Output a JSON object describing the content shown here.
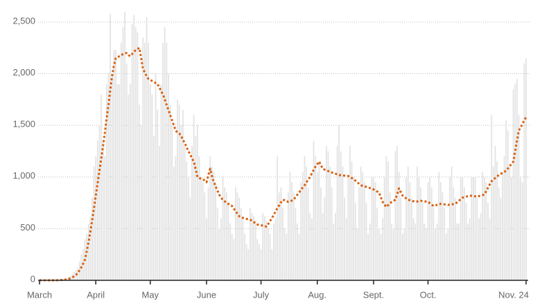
{
  "chart_data": {
    "type": "bar",
    "categories": [
      "March",
      null,
      null,
      null,
      null,
      null,
      null,
      null,
      null,
      null,
      null,
      null,
      null,
      null,
      null,
      null,
      null,
      null,
      null,
      null,
      null,
      null,
      null,
      null,
      null,
      null,
      null,
      null,
      null,
      null,
      null,
      "April",
      null,
      null,
      null,
      null,
      null,
      null,
      null,
      null,
      null,
      null,
      null,
      null,
      null,
      null,
      null,
      null,
      null,
      null,
      null,
      null,
      null,
      null,
      null,
      null,
      null,
      null,
      null,
      null,
      null,
      "May",
      null,
      null,
      null,
      null,
      null,
      null,
      null,
      null,
      null,
      null,
      null,
      null,
      null,
      null,
      null,
      null,
      null,
      null,
      null,
      null,
      null,
      null,
      null,
      null,
      null,
      null,
      null,
      null,
      null,
      null,
      "June",
      null,
      null,
      null,
      null,
      null,
      null,
      null,
      null,
      null,
      null,
      null,
      null,
      null,
      null,
      null,
      null,
      null,
      null,
      null,
      null,
      null,
      null,
      null,
      null,
      null,
      null,
      null,
      null,
      null,
      "July",
      null,
      null,
      null,
      null,
      null,
      null,
      null,
      null,
      null,
      null,
      null,
      null,
      null,
      null,
      null,
      null,
      null,
      null,
      null,
      null,
      null,
      null,
      null,
      null,
      null,
      null,
      null,
      null,
      null,
      null,
      "Aug.",
      null,
      null,
      null,
      null,
      null,
      null,
      null,
      null,
      null,
      null,
      null,
      null,
      null,
      null,
      null,
      null,
      null,
      null,
      null,
      null,
      null,
      null,
      null,
      null,
      null,
      null,
      null,
      null,
      null,
      null,
      "Sept.",
      null,
      null,
      null,
      null,
      null,
      null,
      null,
      null,
      null,
      null,
      null,
      null,
      null,
      null,
      null,
      null,
      null,
      null,
      null,
      null,
      null,
      null,
      null,
      null,
      null,
      null,
      null,
      null,
      null,
      "Oct.",
      null,
      null,
      null,
      null,
      null,
      null,
      null,
      null,
      null,
      null,
      null,
      null,
      null,
      null,
      null,
      null,
      null,
      null,
      null,
      null,
      null,
      null,
      null,
      null,
      null,
      null,
      null,
      null,
      null,
      null,
      null,
      null,
      null,
      null,
      null,
      null,
      null,
      null,
      null,
      null,
      null,
      null,
      null,
      null,
      null,
      null,
      null,
      null,
      null,
      null,
      null,
      null,
      null,
      "Nov. 24"
    ],
    "series": [
      {
        "type": "bar",
        "color": "#e3e3e3",
        "values": [
          0,
          0,
          0,
          0,
          0,
          0,
          0,
          0,
          0,
          0,
          5,
          5,
          8,
          10,
          15,
          20,
          30,
          40,
          60,
          80,
          100,
          120,
          180,
          250,
          300,
          400,
          450,
          550,
          620,
          800,
          1100,
          1200,
          1350,
          1500,
          1800,
          1350,
          1200,
          1900,
          2000,
          2580,
          2000,
          2230,
          2230,
          1900,
          1900,
          2300,
          2450,
          2600,
          2100,
          1800,
          1900,
          2480,
          2570,
          2450,
          2400,
          1700,
          1500,
          2350,
          2300,
          2550,
          2300,
          1900,
          1800,
          1400,
          2000,
          1650,
          1300,
          1900,
          2300,
          2450,
          2300,
          2000,
          1700,
          1500,
          1100,
          1200,
          1750,
          1700,
          1500,
          1650,
          1300,
          1150,
          1000,
          800,
          1300,
          1600,
          1400,
          1500,
          1200,
          1000,
          950,
          850,
          600,
          900,
          1200,
          1100,
          1050,
          950,
          700,
          500,
          600,
          1000,
          900,
          850,
          750,
          550,
          450,
          400,
          900,
          850,
          800,
          700,
          600,
          450,
          350,
          300,
          700,
          650,
          620,
          580,
          400,
          350,
          300,
          650,
          620,
          580,
          500,
          450,
          300,
          550,
          600,
          1200,
          850,
          900,
          700,
          500,
          450,
          850,
          1050,
          950,
          850,
          700,
          550,
          450,
          950,
          1050,
          1200,
          1100,
          900,
          650,
          600,
          1350,
          1200,
          1050,
          1150,
          900,
          650,
          800,
          1300,
          1250,
          1100,
          900,
          550,
          650,
          1300,
          1500,
          1250,
          1100,
          800,
          600,
          1000,
          1300,
          1150,
          1000,
          750,
          500,
          900,
          1100,
          1050,
          950,
          750,
          450,
          550,
          1000,
          1000,
          950,
          700,
          500,
          450,
          600,
          1000,
          1200,
          1150,
          850,
          550,
          500,
          1250,
          1300,
          1050,
          800,
          450,
          500,
          1000,
          1100,
          950,
          800,
          600,
          550,
          1100,
          1000,
          900,
          750,
          550,
          500,
          950,
          1000,
          900,
          700,
          500,
          550,
          1050,
          950,
          850,
          700,
          450,
          500,
          1000,
          1100,
          900,
          800,
          550,
          550,
          1000,
          1000,
          900,
          750,
          550,
          600,
          1000,
          1000,
          1000,
          800,
          600,
          650,
          1050,
          1000,
          950,
          750,
          600,
          1600,
          1100,
          1300,
          1150,
          900,
          800,
          1050,
          1200,
          1550,
          1450,
          1100,
          1000,
          1850,
          1900,
          1950,
          1600,
          1000,
          950,
          2100,
          2150
        ]
      },
      {
        "type": "line",
        "color": "#d9600f",
        "values": [
          0,
          0,
          0,
          0,
          0,
          0,
          0,
          0,
          0,
          0,
          1,
          2,
          3,
          5,
          7,
          10,
          14,
          20,
          28,
          38,
          50,
          70,
          95,
          125,
          160,
          200,
          280,
          370,
          470,
          580,
          700,
          820,
          940,
          1060,
          1180,
          1300,
          1430,
          1570,
          1700,
          1850,
          1980,
          2080,
          2150,
          2160,
          2170,
          2180,
          2190,
          2200,
          2200,
          2180,
          2170,
          2190,
          2210,
          2230,
          2240,
          2250,
          2150,
          2050,
          2010,
          1980,
          1950,
          1940,
          1930,
          1920,
          1910,
          1900,
          1870,
          1830,
          1800,
          1750,
          1700,
          1650,
          1600,
          1550,
          1500,
          1450,
          1430,
          1420,
          1400,
          1360,
          1330,
          1290,
          1250,
          1220,
          1180,
          1150,
          1080,
          1000,
          990,
          985,
          980,
          965,
          950,
          1020,
          1080,
          1010,
          950,
          910,
          870,
          830,
          800,
          780,
          765,
          750,
          740,
          730,
          720,
          695,
          670,
          645,
          620,
          610,
          605,
          600,
          595,
          590,
          585,
          580,
          565,
          550,
          540,
          535,
          532,
          530,
          525,
          520,
          545,
          575,
          600,
          635,
          665,
          700,
          725,
          755,
          780,
          775,
          765,
          760,
          765,
          772,
          780,
          805,
          828,
          850,
          875,
          898,
          920,
          948,
          975,
          1000,
          1035,
          1068,
          1100,
          1125,
          1150,
          1115,
          1080,
          1072,
          1065,
          1058,
          1050,
          1044,
          1038,
          1032,
          1026,
          1020,
          1018,
          1016,
          1014,
          1012,
          1010,
          1000,
          990,
          980,
          965,
          950,
          935,
          920,
          915,
          910,
          905,
          900,
          893,
          887,
          880,
          870,
          860,
          850,
          805,
          760,
          735,
          710,
          727,
          743,
          760,
          770,
          780,
          835,
          890,
          855,
          820,
          807,
          793,
          780,
          775,
          770,
          765,
          760,
          763,
          767,
          770,
          767,
          765,
          762,
          760,
          747,
          733,
          720,
          725,
          730,
          735,
          740,
          738,
          735,
          733,
          730,
          733,
          735,
          738,
          740,
          755,
          770,
          785,
          800,
          805,
          810,
          815,
          820,
          818,
          815,
          813,
          810,
          815,
          820,
          825,
          830,
          862,
          895,
          928,
          960,
          975,
          990,
          1005,
          1020,
          1030,
          1040,
          1050,
          1060,
          1083,
          1105,
          1128,
          1150,
          1250,
          1350,
          1450,
          1480,
          1515,
          1548,
          1580
        ]
      }
    ],
    "ylim": [
      0,
      2600
    ],
    "yticks": [
      0,
      500,
      {
        "value": 1000,
        "label": "1,000"
      },
      {
        "value": 1500,
        "label": "1,500"
      },
      {
        "value": 2000,
        "label": "2,000"
      },
      {
        "value": 2500,
        "label": "2,500"
      }
    ],
    "grid": true
  }
}
